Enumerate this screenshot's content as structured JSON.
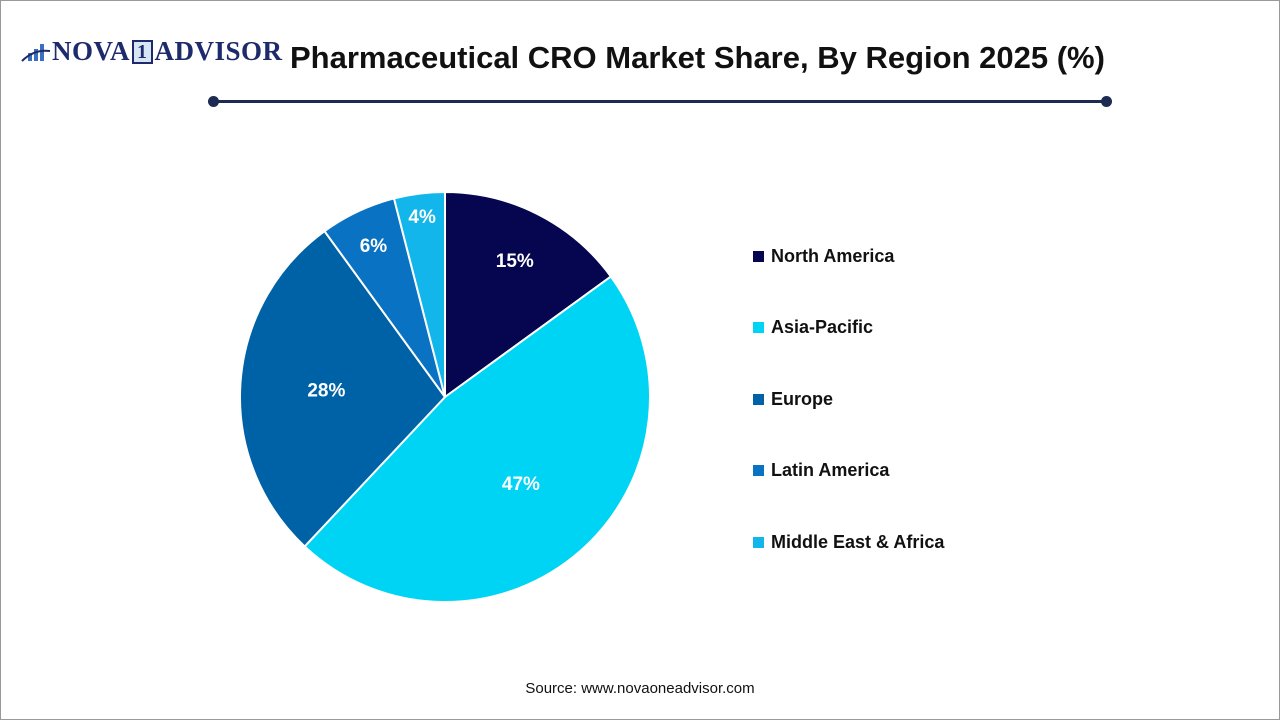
{
  "logo": {
    "text_left": "NOVA",
    "text_one": "1",
    "text_right": "ADVISOR"
  },
  "header": {
    "title": "Pharmaceutical CRO Market Share, By Region 2025 (%)"
  },
  "chart_data": {
    "type": "pie",
    "title": "Pharmaceutical CRO Market Share, By Region 2025 (%)",
    "start_angle": "12 o'clock, clockwise",
    "legend_placement": "right",
    "slices": [
      {
        "name": "North America",
        "value": 15,
        "label": "15%",
        "color": "#05064f"
      },
      {
        "name": "Asia-Pacific",
        "value": 47,
        "label": "47%",
        "color": "#00d4f5"
      },
      {
        "name": "Europe",
        "value": 28,
        "label": "28%",
        "color": "#0062a6"
      },
      {
        "name": "Latin America",
        "value": 6,
        "label": "6%",
        "color": "#0a72c2"
      },
      {
        "name": "Middle East & Africa",
        "value": 4,
        "label": "4%",
        "color": "#12b6ea"
      }
    ]
  },
  "source": "Source: www.novaoneadvisor.com"
}
